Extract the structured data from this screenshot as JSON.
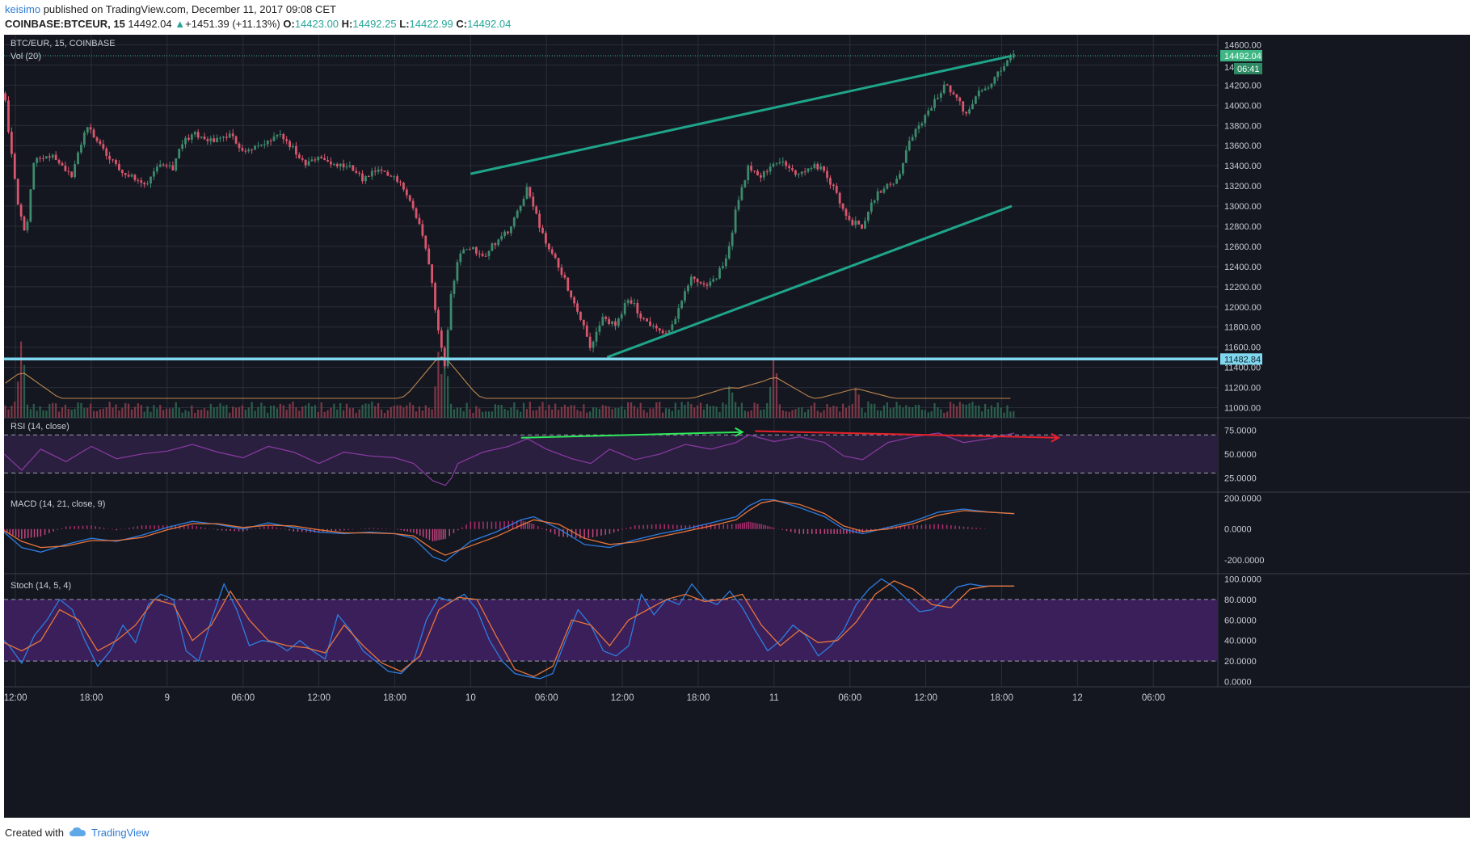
{
  "header": {
    "user": "keisimo",
    "published_text": " published on TradingView.com, December 11, 2017 09:08 CET"
  },
  "ohlc_bar": {
    "symbol": "COINBASE:BTCEUR, 15",
    "last": "14492.04",
    "change": "+1451.39 (+11.13%)",
    "o_label": "O:",
    "o": "14423.00",
    "h_label": "H:",
    "h": "14492.25",
    "l_label": "L:",
    "l": "14422.99",
    "c_label": "C:",
    "c": "14492.04"
  },
  "panes": {
    "main_title": "BTC/EUR, 15, COINBASE",
    "vol_title": "Vol (20)",
    "rsi_title": "RSI (14, close)",
    "macd_title": "MACD (14, 21, close, 9)",
    "stoch_title": "Stoch (14, 5, 4)"
  },
  "badges": {
    "last_price": "14492.04",
    "countdown": "06:41",
    "support_price": "11482.84",
    "partial_tick": "14"
  },
  "footer": {
    "created_with": "Created with",
    "brand": "TradingView"
  },
  "colors": {
    "background": "#141720",
    "up": "#3d8a6c",
    "down": "#d9566d",
    "grid": "#2a2e39",
    "channel": "#1fa58a",
    "support": "#80d8f0",
    "rsi": "#8b3aa5",
    "macd": "#2d7de0",
    "signal": "#e8743b",
    "badge_green": "#3fb785"
  },
  "chart_data": [
    {
      "type": "candlestick",
      "pane": "price",
      "title": "BTC/EUR, 15, COINBASE",
      "ylim": [
        10900,
        14700
      ],
      "y_ticks": [
        11000,
        11200,
        11400,
        11600,
        11800,
        12000,
        12200,
        12400,
        12600,
        12800,
        13000,
        13200,
        13400,
        13600,
        13800,
        14000,
        14200,
        14400,
        14600
      ],
      "y_tick_labels": [
        "11000.00",
        "11200.00",
        "11400.00",
        "11600.00",
        "11800.00",
        "12000.00",
        "12200.00",
        "12400.00",
        "12600.00",
        "12800.00",
        "13000.00",
        "13200.00",
        "13400.00",
        "13600.00",
        "13800.00",
        "14000.00",
        "14200.00",
        "",
        "14600.00"
      ],
      "x_ticks": [
        "12:00",
        "18:00",
        "9",
        "06:00",
        "12:00",
        "18:00",
        "10",
        "06:00",
        "12:00",
        "18:00",
        "11",
        "06:00",
        "12:00",
        "18:00",
        "12",
        "06:00"
      ],
      "x_hours_since_dec8_0600": [
        6,
        12,
        18,
        24,
        30,
        36,
        42,
        48,
        54,
        60,
        66,
        72,
        78,
        84,
        90,
        96
      ],
      "x_range_hours": [
        5.1,
        101.1
      ],
      "last_price": 14492.04,
      "support_level": 11482.84,
      "price_path": [
        [
          5.1,
          14120
        ],
        [
          6.2,
          13000
        ],
        [
          6.8,
          12700
        ],
        [
          7.5,
          13500
        ],
        [
          9,
          13500
        ],
        [
          10.5,
          13300
        ],
        [
          11.6,
          13800
        ],
        [
          13.5,
          13450
        ],
        [
          15,
          13300
        ],
        [
          16.2,
          13200
        ],
        [
          17.5,
          13450
        ],
        [
          18.5,
          13380
        ],
        [
          19,
          13600
        ],
        [
          20,
          13720
        ],
        [
          21.5,
          13650
        ],
        [
          23,
          13700
        ],
        [
          24,
          13550
        ],
        [
          25.5,
          13600
        ],
        [
          27,
          13700
        ],
        [
          28,
          13560
        ],
        [
          28.5,
          13450
        ],
        [
          29,
          13400
        ],
        [
          30,
          13500
        ],
        [
          31,
          13400
        ],
        [
          32,
          13400
        ],
        [
          33,
          13350
        ],
        [
          33.5,
          13250
        ],
        [
          34.5,
          13350
        ],
        [
          35.5,
          13300
        ],
        [
          36.5,
          13250
        ],
        [
          37.2,
          13050
        ],
        [
          38,
          12800
        ],
        [
          38.8,
          12400
        ],
        [
          39.3,
          11900
        ],
        [
          40,
          11400
        ],
        [
          40.3,
          12000
        ],
        [
          41,
          12500
        ],
        [
          42,
          12600
        ],
        [
          43,
          12500
        ],
        [
          44,
          12650
        ],
        [
          45,
          12750
        ],
        [
          46,
          13000
        ],
        [
          46.5,
          13200
        ],
        [
          47.2,
          12900
        ],
        [
          48,
          12600
        ],
        [
          49,
          12400
        ],
        [
          50,
          12100
        ],
        [
          51,
          11800
        ],
        [
          51.5,
          11600
        ],
        [
          52.5,
          11900
        ],
        [
          53.5,
          11800
        ],
        [
          54.5,
          12100
        ],
        [
          55.5,
          11900
        ],
        [
          56.5,
          11800
        ],
        [
          57.5,
          11700
        ],
        [
          58.5,
          12000
        ],
        [
          59.5,
          12300
        ],
        [
          60.5,
          12200
        ],
        [
          61.5,
          12300
        ],
        [
          62.5,
          12600
        ],
        [
          63,
          13000
        ],
        [
          64,
          13400
        ],
        [
          65,
          13300
        ],
        [
          66,
          13450
        ],
        [
          67,
          13400
        ],
        [
          68,
          13300
        ],
        [
          69,
          13400
        ],
        [
          70,
          13350
        ],
        [
          71,
          13100
        ],
        [
          72,
          12850
        ],
        [
          73,
          12800
        ],
        [
          74,
          13100
        ],
        [
          75,
          13200
        ],
        [
          76,
          13300
        ],
        [
          76.5,
          13600
        ],
        [
          77.5,
          13800
        ],
        [
          78.5,
          14000
        ],
        [
          79.5,
          14200
        ],
        [
          80.5,
          14100
        ],
        [
          81,
          13900
        ],
        [
          82,
          14100
        ],
        [
          83,
          14200
        ],
        [
          84,
          14380
        ],
        [
          85,
          14492
        ]
      ],
      "drawings": {
        "channel_upper": [
          [
            42.0,
            13320
          ],
          [
            84.8,
            14490
          ]
        ],
        "channel_lower": [
          [
            52.8,
            11500
          ],
          [
            84.8,
            13000
          ]
        ],
        "support_line": 11482.84
      }
    },
    {
      "type": "bar",
      "pane": "volume",
      "title": "Vol (20)",
      "notes": "volume histogram with 20-period moving average, overlaid at bottom of price pane; spikes near 6.5h, 39.5h and 66h"
    },
    {
      "type": "line",
      "pane": "rsi",
      "title": "RSI (14, close)",
      "ylim": [
        10,
        88
      ],
      "y_ticks": [
        25,
        50,
        75
      ],
      "y_tick_labels": [
        "25.0000",
        "50.0000",
        "75.0000"
      ],
      "bands": [
        30,
        70
      ],
      "series": [
        {
          "x": [
            5.1,
            6.5,
            8,
            10,
            12,
            14,
            16,
            18,
            20,
            22,
            24,
            26,
            28,
            30,
            32,
            34,
            36,
            37.5,
            39,
            40,
            40.5,
            41,
            43,
            45,
            46.5,
            48,
            50,
            51.5,
            53,
            55,
            57,
            59,
            61,
            63,
            64,
            66,
            68,
            70,
            71.5,
            73,
            75,
            77,
            79,
            81,
            83,
            85
          ],
          "values": [
            50,
            33,
            55,
            42,
            58,
            45,
            50,
            53,
            60,
            52,
            46,
            58,
            52,
            40,
            52,
            48,
            46,
            40,
            22,
            17,
            25,
            40,
            52,
            58,
            66,
            55,
            45,
            40,
            55,
            44,
            50,
            60,
            55,
            62,
            70,
            63,
            68,
            62,
            48,
            44,
            62,
            68,
            72,
            62,
            66,
            72
          ]
        }
      ],
      "annotations": {
        "green_arrow": [
          [
            46.0,
            67
          ],
          [
            63.5,
            73
          ]
        ],
        "red_arrow": [
          [
            64.5,
            74
          ],
          [
            88.5,
            67
          ]
        ]
      }
    },
    {
      "type": "line",
      "pane": "macd",
      "title": "MACD (14, 21, close, 9)",
      "ylim": [
        -290,
        240
      ],
      "y_ticks": [
        -200,
        0,
        200
      ],
      "y_tick_labels": [
        "-200.0000",
        "0.0000",
        "200.0000"
      ],
      "series": [
        {
          "name": "MACD",
          "x": [
            5.1,
            6.5,
            8,
            10,
            12,
            14,
            16,
            18,
            20,
            22,
            24,
            26,
            28,
            30,
            32,
            34,
            36,
            37.5,
            39,
            40,
            42,
            44,
            46,
            47,
            49,
            51,
            53,
            55,
            57,
            59,
            61,
            63,
            64,
            65,
            66,
            68,
            70,
            71.5,
            73,
            75,
            77,
            79,
            81,
            83,
            85
          ],
          "values": [
            -20,
            -120,
            -150,
            -100,
            -60,
            -80,
            -40,
            10,
            50,
            30,
            0,
            40,
            10,
            -20,
            -30,
            -20,
            -30,
            -60,
            -180,
            -210,
            -80,
            -20,
            60,
            80,
            0,
            -100,
            -120,
            -70,
            -30,
            0,
            40,
            80,
            150,
            190,
            190,
            140,
            80,
            0,
            -30,
            10,
            50,
            110,
            130,
            110,
            100
          ]
        },
        {
          "name": "Signal",
          "x": [
            5.1,
            6.5,
            8,
            10,
            12,
            14,
            16,
            18,
            20,
            22,
            24,
            26,
            28,
            30,
            32,
            34,
            36,
            37.5,
            39,
            40,
            42,
            44,
            46,
            47,
            49,
            51,
            53,
            55,
            57,
            59,
            61,
            63,
            64,
            65,
            66,
            68,
            70,
            71.5,
            73,
            75,
            77,
            79,
            81,
            83,
            85
          ],
          "values": [
            -10,
            -80,
            -120,
            -110,
            -75,
            -75,
            -55,
            -5,
            35,
            35,
            10,
            25,
            20,
            -5,
            -25,
            -25,
            -30,
            -45,
            -130,
            -170,
            -110,
            -50,
            25,
            60,
            30,
            -60,
            -100,
            -85,
            -50,
            -15,
            20,
            60,
            120,
            170,
            185,
            160,
            100,
            20,
            -15,
            0,
            35,
            90,
            120,
            110,
            100
          ]
        }
      ]
    },
    {
      "type": "line",
      "pane": "stoch",
      "title": "Stoch (14, 5, 4)",
      "ylim": [
        -5,
        105
      ],
      "y_ticks": [
        0,
        20,
        40,
        60,
        80,
        100
      ],
      "y_tick_labels": [
        "0.0000",
        "20.0000",
        "40.0000",
        "60.0000",
        "80.0000",
        "100.0000"
      ],
      "bands": [
        20,
        80
      ],
      "series": [
        {
          "name": "%K",
          "x": [
            5.1,
            5.5,
            6.5,
            7.5,
            8.5,
            9.5,
            10.5,
            11.5,
            12.5,
            13.5,
            14.5,
            15.5,
            16.5,
            17.5,
            18.5,
            19.5,
            20.5,
            21.5,
            22.5,
            23.5,
            24.5,
            25.5,
            26.5,
            27.5,
            28.5,
            29.5,
            30.5,
            31.5,
            32.5,
            33.5,
            34.5,
            35.5,
            36.5,
            37.5,
            38.5,
            39.5,
            40.5,
            41.5,
            42.5,
            43.5,
            44.5,
            45.5,
            46.5,
            47.5,
            48.5,
            49.5,
            50.5,
            51.5,
            52.5,
            53.5,
            54.5,
            55.5,
            56.5,
            57.5,
            58.5,
            59.5,
            60.5,
            61.5,
            62.5,
            63.5,
            64.5,
            65.5,
            66.5,
            67.5,
            68.5,
            69.5,
            70.5,
            71.5,
            72.5,
            73.5,
            74.5,
            75.5,
            76.5,
            77.5,
            78.5,
            79.5,
            80.5,
            81.5,
            82.5,
            83.5,
            84.5,
            85
          ],
          "values": [
            40,
            35,
            18,
            45,
            60,
            80,
            70,
            40,
            15,
            30,
            55,
            38,
            75,
            85,
            80,
            30,
            20,
            60,
            95,
            70,
            35,
            40,
            38,
            30,
            40,
            30,
            22,
            65,
            50,
            30,
            20,
            10,
            8,
            20,
            60,
            82,
            78,
            85,
            70,
            40,
            20,
            8,
            5,
            3,
            8,
            40,
            70,
            55,
            30,
            25,
            35,
            85,
            65,
            80,
            75,
            95,
            80,
            75,
            88,
            72,
            50,
            30,
            40,
            55,
            45,
            25,
            35,
            50,
            75,
            90,
            100,
            92,
            80,
            68,
            70,
            80,
            92,
            95,
            93,
            93,
            93,
            93
          ]
        },
        {
          "name": "%D",
          "x": [
            5.1,
            6.5,
            8,
            9.5,
            11,
            12.5,
            14,
            15.5,
            17,
            18.5,
            20,
            21.5,
            23,
            24.5,
            26,
            27.5,
            29,
            30.5,
            32,
            33.5,
            35,
            36.5,
            38,
            39.5,
            41,
            42.5,
            44,
            45.5,
            47,
            48.5,
            50,
            51.5,
            53,
            54.5,
            56,
            57.5,
            59,
            60.5,
            62,
            63.5,
            65,
            66.5,
            68,
            69.5,
            71,
            72.5,
            74,
            75.5,
            77,
            78.5,
            80,
            81.5,
            83,
            84.5,
            85
          ],
          "values": [
            38,
            30,
            40,
            70,
            60,
            30,
            40,
            55,
            80,
            75,
            40,
            55,
            88,
            60,
            40,
            35,
            33,
            28,
            55,
            35,
            18,
            10,
            25,
            70,
            82,
            80,
            45,
            12,
            5,
            15,
            60,
            55,
            35,
            60,
            70,
            80,
            85,
            78,
            80,
            85,
            55,
            35,
            50,
            38,
            40,
            58,
            85,
            98,
            90,
            75,
            72,
            90,
            93,
            93,
            93
          ]
        }
      ]
    }
  ]
}
